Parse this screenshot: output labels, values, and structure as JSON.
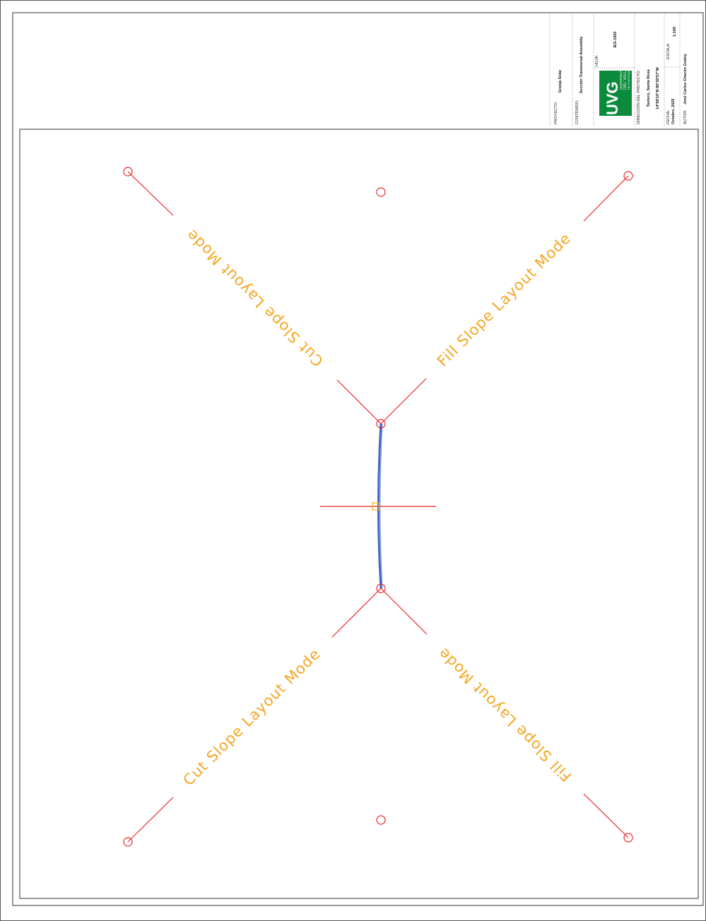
{
  "title_block": {
    "project_label": "PROYECTO:",
    "project": "Granja Solar",
    "content_label": "CONTENIDO:",
    "content": "Sección Transversal Assembly",
    "sheet_label": "HOJA:",
    "sheet": "IES-1003",
    "logo": "UVG",
    "university": [
      "UNIVERSIDAD",
      "DEL VALLE",
      "DE GUATEMALA"
    ],
    "address_label": "DIRECCIÓN DEL PROYECTO:",
    "address": "Taxisco, Santa Rosa",
    "coordinates": "14°08'10\"N 90°30'57\"W",
    "date_label": "FECHA:",
    "date": "Octubre, 2025",
    "scale_label": "ESCALA:",
    "scale": "1:100",
    "author_label": "AUTOR:",
    "author": "José Carlos Chacón Godoy"
  },
  "labels": [
    "Cut Slope Layout Mode",
    "Fill Slope Layout Mode",
    "Cut Slope Layout Mode",
    "Fill Slope Layout Mode"
  ]
}
